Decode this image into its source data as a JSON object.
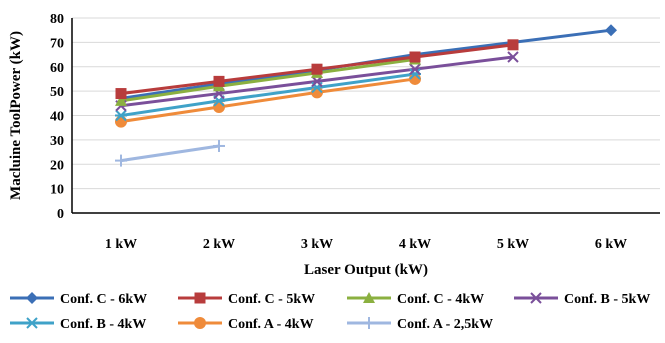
{
  "chart_data": {
    "type": "line",
    "title": "",
    "xlabel": "Laser Output (kW)",
    "ylabel": "Macluine ToolPower (kW)",
    "categories": [
      "1 kW",
      "2 kW",
      "3 kW",
      "4 kW",
      "5 kW",
      "6 kW"
    ],
    "y_ticks": [
      "0",
      "10",
      "20",
      "30",
      "40",
      "50",
      "60",
      "70",
      "80"
    ],
    "ylim": [
      0,
      80
    ],
    "grid": true,
    "legend_position": "bottom",
    "series": [
      {
        "name": "Conf. C - 6kW",
        "color": "#3b6fb6",
        "marker": "diamond",
        "values": [
          null,
          null,
          null,
          null,
          null,
          75
        ]
      },
      {
        "name": "Conf. C - 5kW",
        "color": "#b83c3c",
        "marker": "square",
        "values": [
          49,
          54,
          59,
          64,
          69,
          null
        ]
      },
      {
        "name": "Conf. C - 4kW",
        "color": "#8bb040",
        "marker": "triangle",
        "values": [
          46,
          52,
          57.5,
          63,
          null,
          null
        ]
      },
      {
        "name": "Conf. B - 5kW",
        "color": "#7a4f9a",
        "marker": "x",
        "values": [
          44,
          49,
          54,
          59,
          64,
          null
        ]
      },
      {
        "name": "Conf. B - 4kW",
        "color": "#3fa2c8",
        "marker": "star",
        "values": [
          40,
          46,
          51.5,
          57,
          null,
          null
        ]
      },
      {
        "name": "Conf. A - 4kW",
        "color": "#ef8b3a",
        "marker": "circle",
        "values": [
          37.5,
          43.5,
          49.5,
          55,
          null,
          null
        ]
      },
      {
        "name": "Conf. A - 2,5kW",
        "color": "#9fb7e0",
        "marker": "plus",
        "values": [
          21.5,
          27.5,
          null,
          null,
          null,
          null
        ]
      }
    ],
    "hidden_line_segment": {
      "series": "Conf. C - 6kW",
      "values": [
        47,
        53,
        58.5,
        65,
        70,
        75
      ]
    }
  }
}
